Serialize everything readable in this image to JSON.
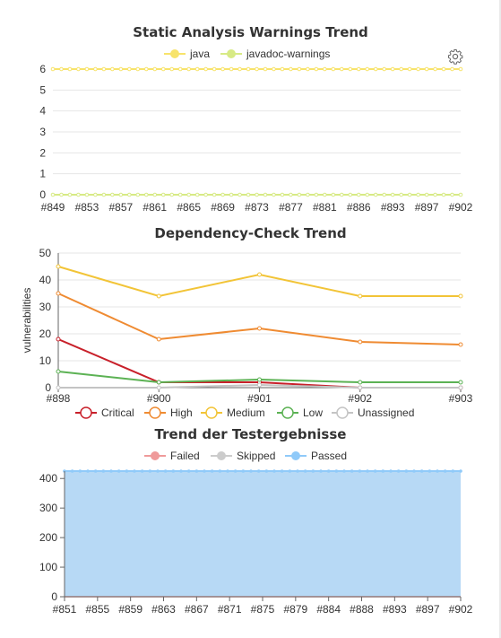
{
  "chart_data": [
    {
      "type": "line",
      "title": "Static Analysis Warnings Trend",
      "categories": [
        "#849",
        "#853",
        "#857",
        "#861",
        "#865",
        "#869",
        "#873",
        "#877",
        "#881",
        "#886",
        "#893",
        "#897",
        "#902"
      ],
      "point_count": 49,
      "series": [
        {
          "name": "java",
          "value": 6,
          "color": "#f7e36b"
        },
        {
          "name": "javadoc-warnings",
          "value": 0,
          "color": "#d7ea85"
        }
      ],
      "ylim": [
        0,
        6
      ],
      "yticks": [
        0,
        1,
        2,
        3,
        4,
        5,
        6
      ],
      "settings_icon": "gear-icon"
    },
    {
      "type": "line",
      "title": "Dependency-Check Trend",
      "ylabel": "vulnerabilities",
      "categories": [
        "#898",
        "#900",
        "#901",
        "#902",
        "#903"
      ],
      "ylim": [
        0,
        50
      ],
      "yticks": [
        0,
        10,
        20,
        30,
        40,
        50
      ],
      "series": [
        {
          "name": "Critical",
          "values": [
            18,
            2,
            2,
            0,
            0
          ],
          "color": "#c8202a"
        },
        {
          "name": "High",
          "values": [
            35,
            18,
            22,
            17,
            16
          ],
          "color": "#ef8b32"
        },
        {
          "name": "Medium",
          "values": [
            45,
            34,
            42,
            34,
            34
          ],
          "color": "#f2c437"
        },
        {
          "name": "Low",
          "values": [
            6,
            2,
            3,
            2,
            2
          ],
          "color": "#5cb254"
        },
        {
          "name": "Unassigned",
          "values": [
            0,
            0,
            1,
            0,
            0
          ],
          "color": "#c4c4c4"
        }
      ]
    },
    {
      "type": "area",
      "title": "Trend der Testergebnisse",
      "categories": [
        "#851",
        "#855",
        "#859",
        "#863",
        "#867",
        "#871",
        "#875",
        "#879",
        "#884",
        "#888",
        "#893",
        "#897",
        "#902"
      ],
      "point_count": 52,
      "ylim": [
        0,
        425
      ],
      "yticks": [
        0,
        100,
        200,
        300,
        400
      ],
      "series": [
        {
          "name": "Failed",
          "value": 0,
          "color": "#ef9a9a"
        },
        {
          "name": "Skipped",
          "value": 0,
          "color": "#cccccc"
        },
        {
          "name": "Passed",
          "value": 425,
          "color": "#90caf9",
          "fill": "#b7d9f5"
        }
      ]
    }
  ]
}
